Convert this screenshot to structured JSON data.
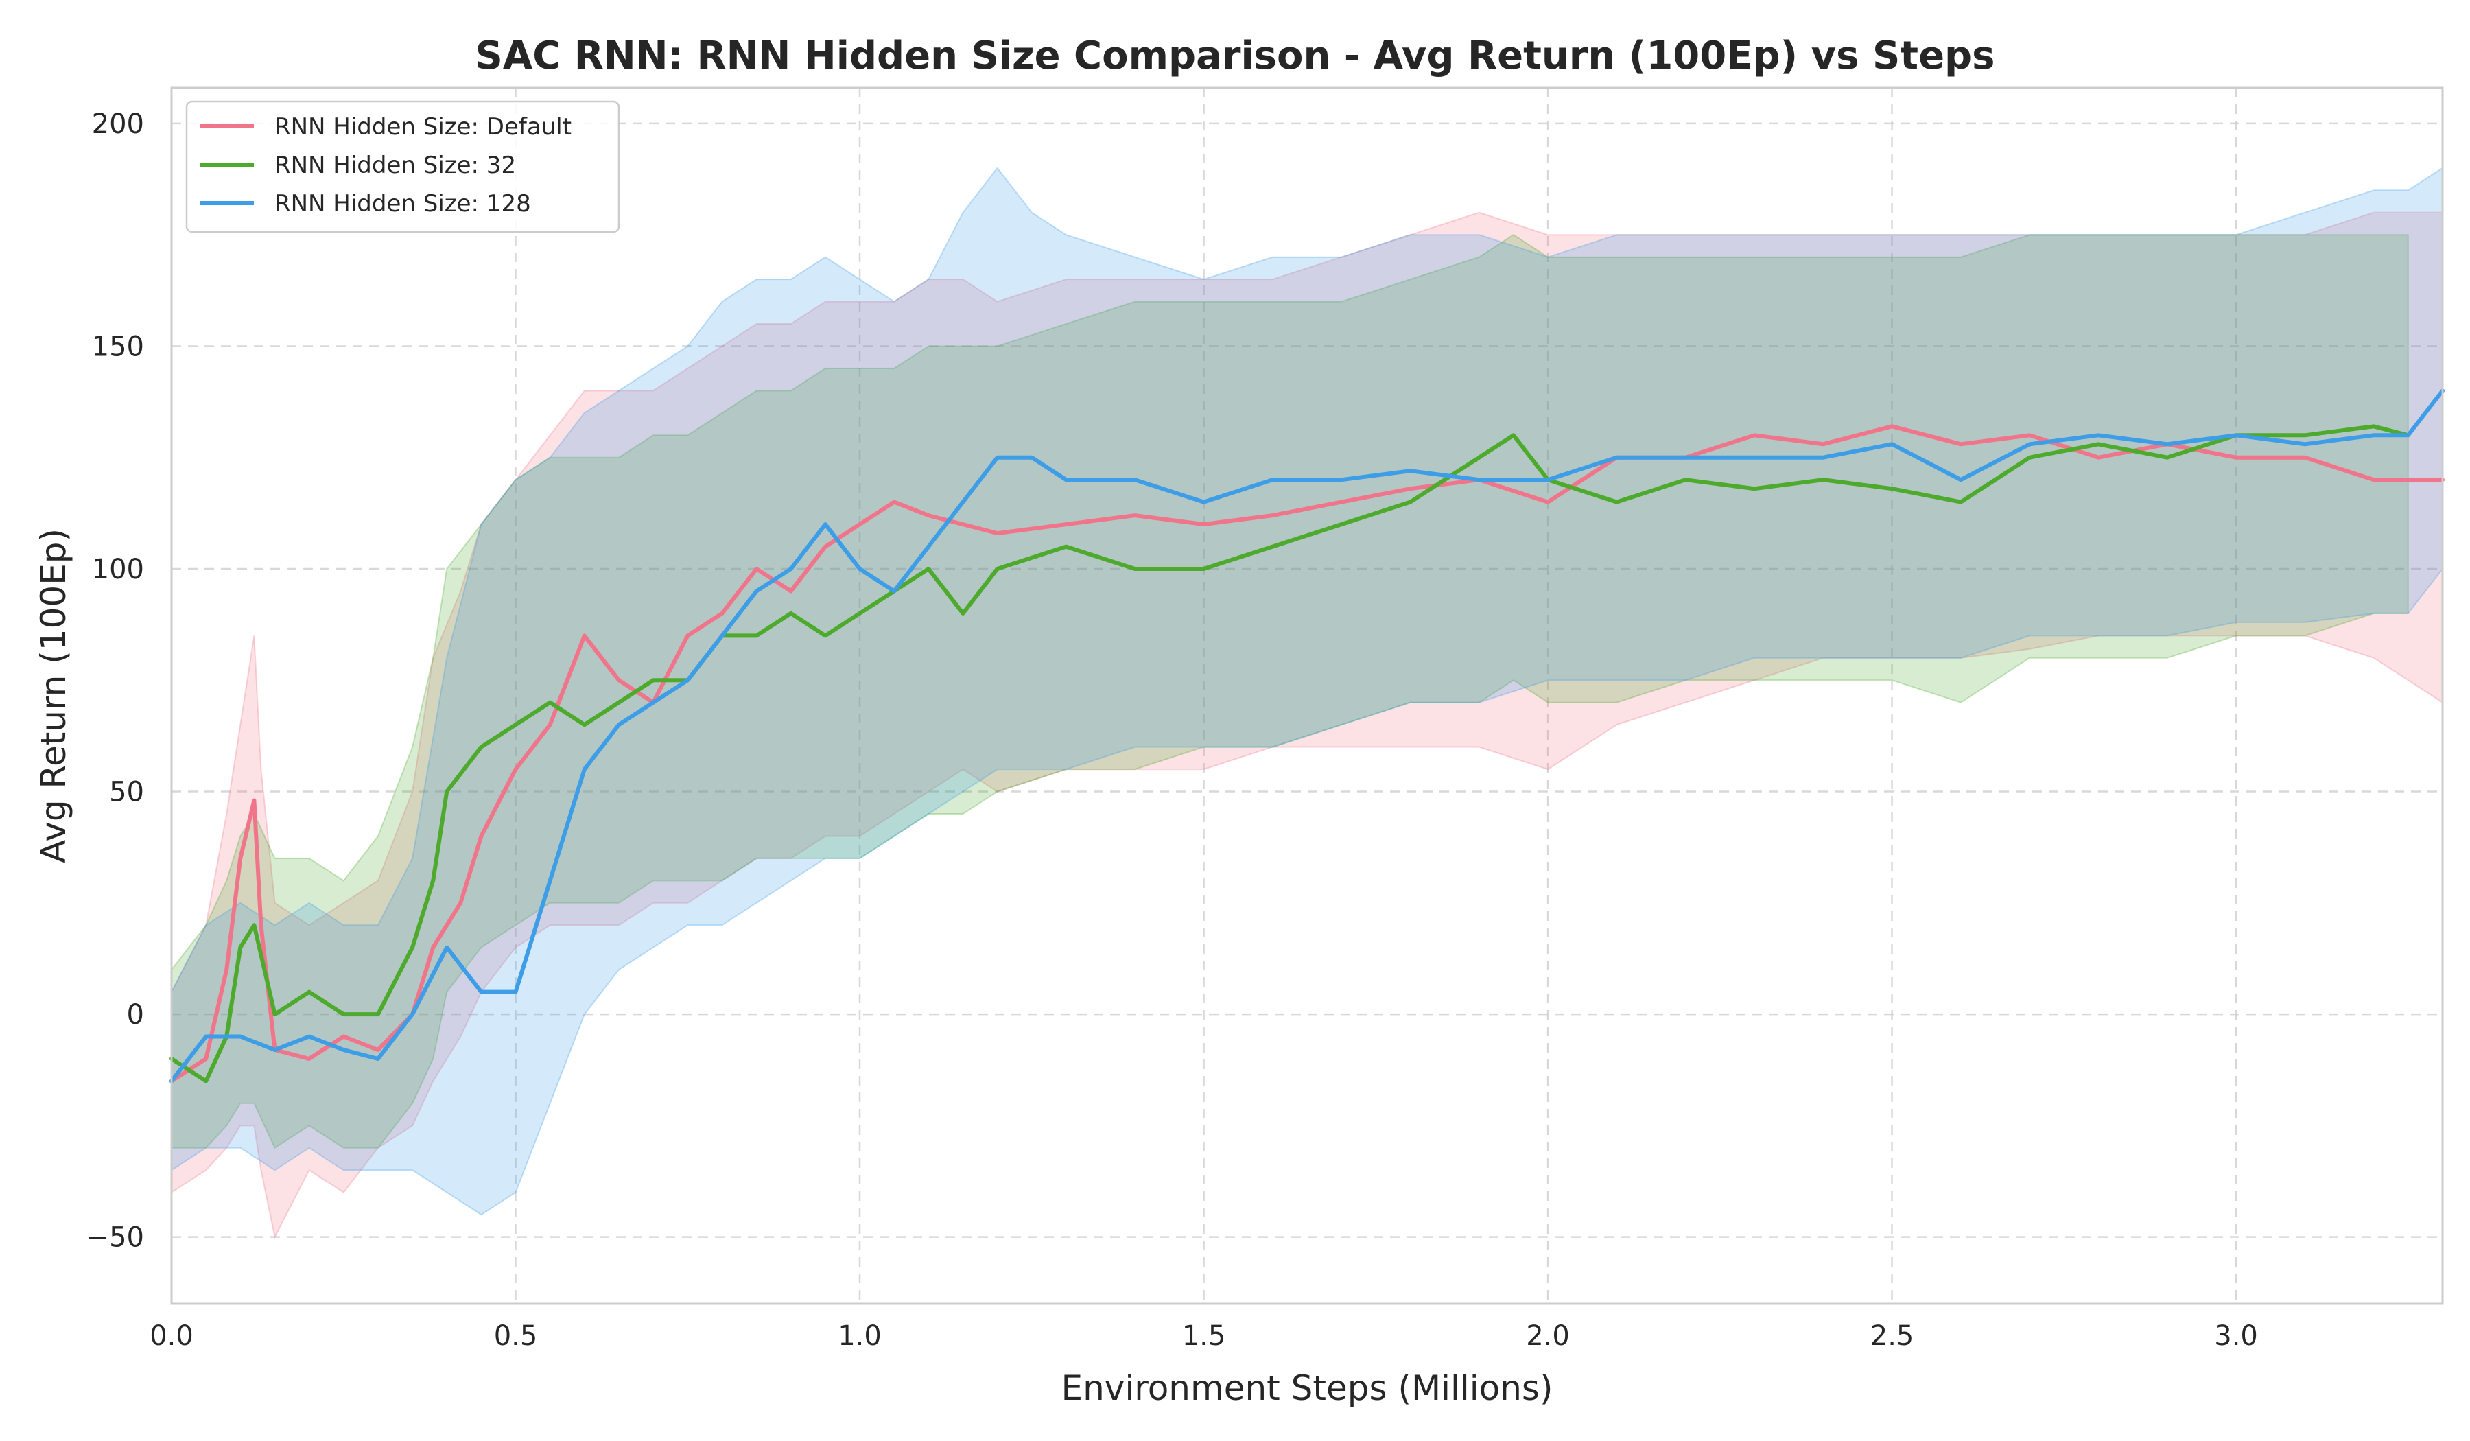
{
  "chart_data": {
    "type": "line",
    "title": "SAC RNN: RNN Hidden Size Comparison - Avg Return (100Ep) vs Steps",
    "xlabel": "Environment Steps (Millions)",
    "ylabel": "Avg Return (100Ep)",
    "xlim": [
      0.0,
      3.3
    ],
    "ylim": [
      -65,
      208
    ],
    "xticks": [
      0.0,
      0.5,
      1.0,
      1.5,
      2.0,
      2.5,
      3.0
    ],
    "xtick_labels": [
      "0.0",
      "0.5",
      "1.0",
      "1.5",
      "2.0",
      "2.5",
      "3.0"
    ],
    "yticks": [
      -50,
      0,
      50,
      100,
      150,
      200
    ],
    "ytick_labels": [
      "−50",
      "0",
      "50",
      "100",
      "150",
      "200"
    ],
    "grid": true,
    "legend_position": "top-left",
    "series": [
      {
        "name": "RNN Hidden Size: Default",
        "color": "#f0758a",
        "x": [
          0.0,
          0.05,
          0.08,
          0.1,
          0.12,
          0.13,
          0.15,
          0.2,
          0.25,
          0.3,
          0.35,
          0.38,
          0.42,
          0.45,
          0.5,
          0.55,
          0.6,
          0.65,
          0.7,
          0.75,
          0.8,
          0.85,
          0.9,
          0.95,
          1.0,
          1.05,
          1.1,
          1.15,
          1.2,
          1.3,
          1.4,
          1.5,
          1.6,
          1.7,
          1.8,
          1.9,
          2.0,
          2.1,
          2.2,
          2.3,
          2.4,
          2.5,
          2.6,
          2.7,
          2.8,
          2.9,
          3.0,
          3.1,
          3.2,
          3.3
        ],
        "y": [
          -15,
          -10,
          10,
          35,
          48,
          20,
          -8,
          -10,
          -5,
          -8,
          0,
          15,
          25,
          40,
          55,
          65,
          85,
          75,
          70,
          85,
          90,
          100,
          95,
          105,
          110,
          115,
          112,
          110,
          108,
          110,
          112,
          110,
          112,
          115,
          118,
          120,
          115,
          125,
          125,
          130,
          128,
          132,
          128,
          130,
          125,
          128,
          125,
          125,
          120,
          120
        ],
        "lower": [
          -40,
          -35,
          -30,
          -25,
          -25,
          -35,
          -50,
          -35,
          -40,
          -30,
          -25,
          -15,
          -5,
          5,
          15,
          20,
          20,
          20,
          25,
          25,
          30,
          35,
          35,
          40,
          40,
          45,
          50,
          55,
          50,
          55,
          55,
          55,
          60,
          60,
          60,
          60,
          55,
          65,
          70,
          75,
          80,
          80,
          80,
          82,
          85,
          85,
          85,
          85,
          80,
          70
        ],
        "upper": [
          5,
          20,
          45,
          65,
          85,
          55,
          25,
          20,
          25,
          30,
          50,
          80,
          95,
          110,
          120,
          130,
          140,
          140,
          140,
          145,
          150,
          155,
          155,
          160,
          160,
          160,
          165,
          165,
          160,
          165,
          165,
          165,
          165,
          170,
          175,
          180,
          175,
          175,
          175,
          175,
          175,
          175,
          175,
          175,
          175,
          175,
          175,
          175,
          180,
          180
        ]
      },
      {
        "name": "RNN Hidden Size: 32",
        "color": "#4daa2d",
        "x": [
          0.0,
          0.05,
          0.08,
          0.1,
          0.12,
          0.15,
          0.2,
          0.25,
          0.3,
          0.35,
          0.38,
          0.4,
          0.45,
          0.5,
          0.55,
          0.6,
          0.65,
          0.7,
          0.75,
          0.8,
          0.85,
          0.9,
          0.95,
          1.0,
          1.05,
          1.1,
          1.15,
          1.2,
          1.3,
          1.4,
          1.5,
          1.6,
          1.7,
          1.8,
          1.9,
          1.95,
          2.0,
          2.1,
          2.2,
          2.3,
          2.4,
          2.5,
          2.6,
          2.7,
          2.8,
          2.9,
          3.0,
          3.1,
          3.2,
          3.25
        ],
        "y": [
          -10,
          -15,
          -5,
          15,
          20,
          0,
          5,
          0,
          0,
          15,
          30,
          50,
          60,
          65,
          70,
          65,
          70,
          75,
          75,
          85,
          85,
          90,
          85,
          90,
          95,
          100,
          90,
          100,
          105,
          100,
          100,
          105,
          110,
          115,
          125,
          130,
          120,
          115,
          120,
          118,
          120,
          118,
          115,
          125,
          128,
          125,
          130,
          130,
          132,
          130
        ],
        "lower": [
          -30,
          -30,
          -25,
          -20,
          -20,
          -30,
          -25,
          -30,
          -30,
          -20,
          -10,
          5,
          15,
          20,
          25,
          25,
          25,
          30,
          30,
          30,
          35,
          35,
          35,
          35,
          40,
          45,
          45,
          50,
          55,
          55,
          60,
          60,
          65,
          70,
          70,
          75,
          70,
          70,
          75,
          75,
          75,
          75,
          70,
          80,
          80,
          80,
          85,
          85,
          90,
          90
        ],
        "upper": [
          10,
          20,
          30,
          40,
          45,
          35,
          35,
          30,
          40,
          60,
          80,
          100,
          110,
          120,
          125,
          125,
          125,
          130,
          130,
          135,
          140,
          140,
          145,
          145,
          145,
          150,
          150,
          150,
          155,
          160,
          160,
          160,
          160,
          165,
          170,
          175,
          170,
          170,
          170,
          170,
          170,
          170,
          170,
          175,
          175,
          175,
          175,
          175,
          175,
          175
        ]
      },
      {
        "name": "RNN Hidden Size: 128",
        "color": "#3d9de6",
        "x": [
          0.0,
          0.05,
          0.1,
          0.15,
          0.2,
          0.25,
          0.3,
          0.35,
          0.4,
          0.45,
          0.5,
          0.55,
          0.6,
          0.65,
          0.7,
          0.75,
          0.8,
          0.85,
          0.9,
          0.95,
          1.0,
          1.05,
          1.1,
          1.15,
          1.2,
          1.25,
          1.3,
          1.4,
          1.5,
          1.6,
          1.7,
          1.8,
          1.9,
          2.0,
          2.1,
          2.2,
          2.3,
          2.4,
          2.5,
          2.6,
          2.7,
          2.8,
          2.9,
          3.0,
          3.1,
          3.2,
          3.25,
          3.3
        ],
        "y": [
          -15,
          -5,
          -5,
          -8,
          -5,
          -8,
          -10,
          0,
          15,
          5,
          5,
          30,
          55,
          65,
          70,
          75,
          85,
          95,
          100,
          110,
          100,
          95,
          105,
          115,
          125,
          125,
          120,
          120,
          115,
          120,
          120,
          122,
          120,
          120,
          125,
          125,
          125,
          125,
          128,
          120,
          128,
          130,
          128,
          130,
          128,
          130,
          130,
          140
        ],
        "lower": [
          -35,
          -30,
          -30,
          -35,
          -30,
          -35,
          -35,
          -35,
          -40,
          -45,
          -40,
          -20,
          0,
          10,
          15,
          20,
          20,
          25,
          30,
          35,
          35,
          40,
          45,
          50,
          55,
          55,
          55,
          60,
          60,
          60,
          65,
          70,
          70,
          75,
          75,
          75,
          80,
          80,
          80,
          80,
          85,
          85,
          85,
          88,
          88,
          90,
          90,
          100
        ],
        "upper": [
          5,
          20,
          25,
          20,
          25,
          20,
          20,
          35,
          80,
          110,
          120,
          125,
          135,
          140,
          145,
          150,
          160,
          165,
          165,
          170,
          165,
          160,
          165,
          180,
          190,
          180,
          175,
          170,
          165,
          170,
          170,
          175,
          175,
          170,
          175,
          175,
          175,
          175,
          175,
          175,
          175,
          175,
          175,
          175,
          180,
          185,
          185,
          190
        ]
      }
    ]
  }
}
